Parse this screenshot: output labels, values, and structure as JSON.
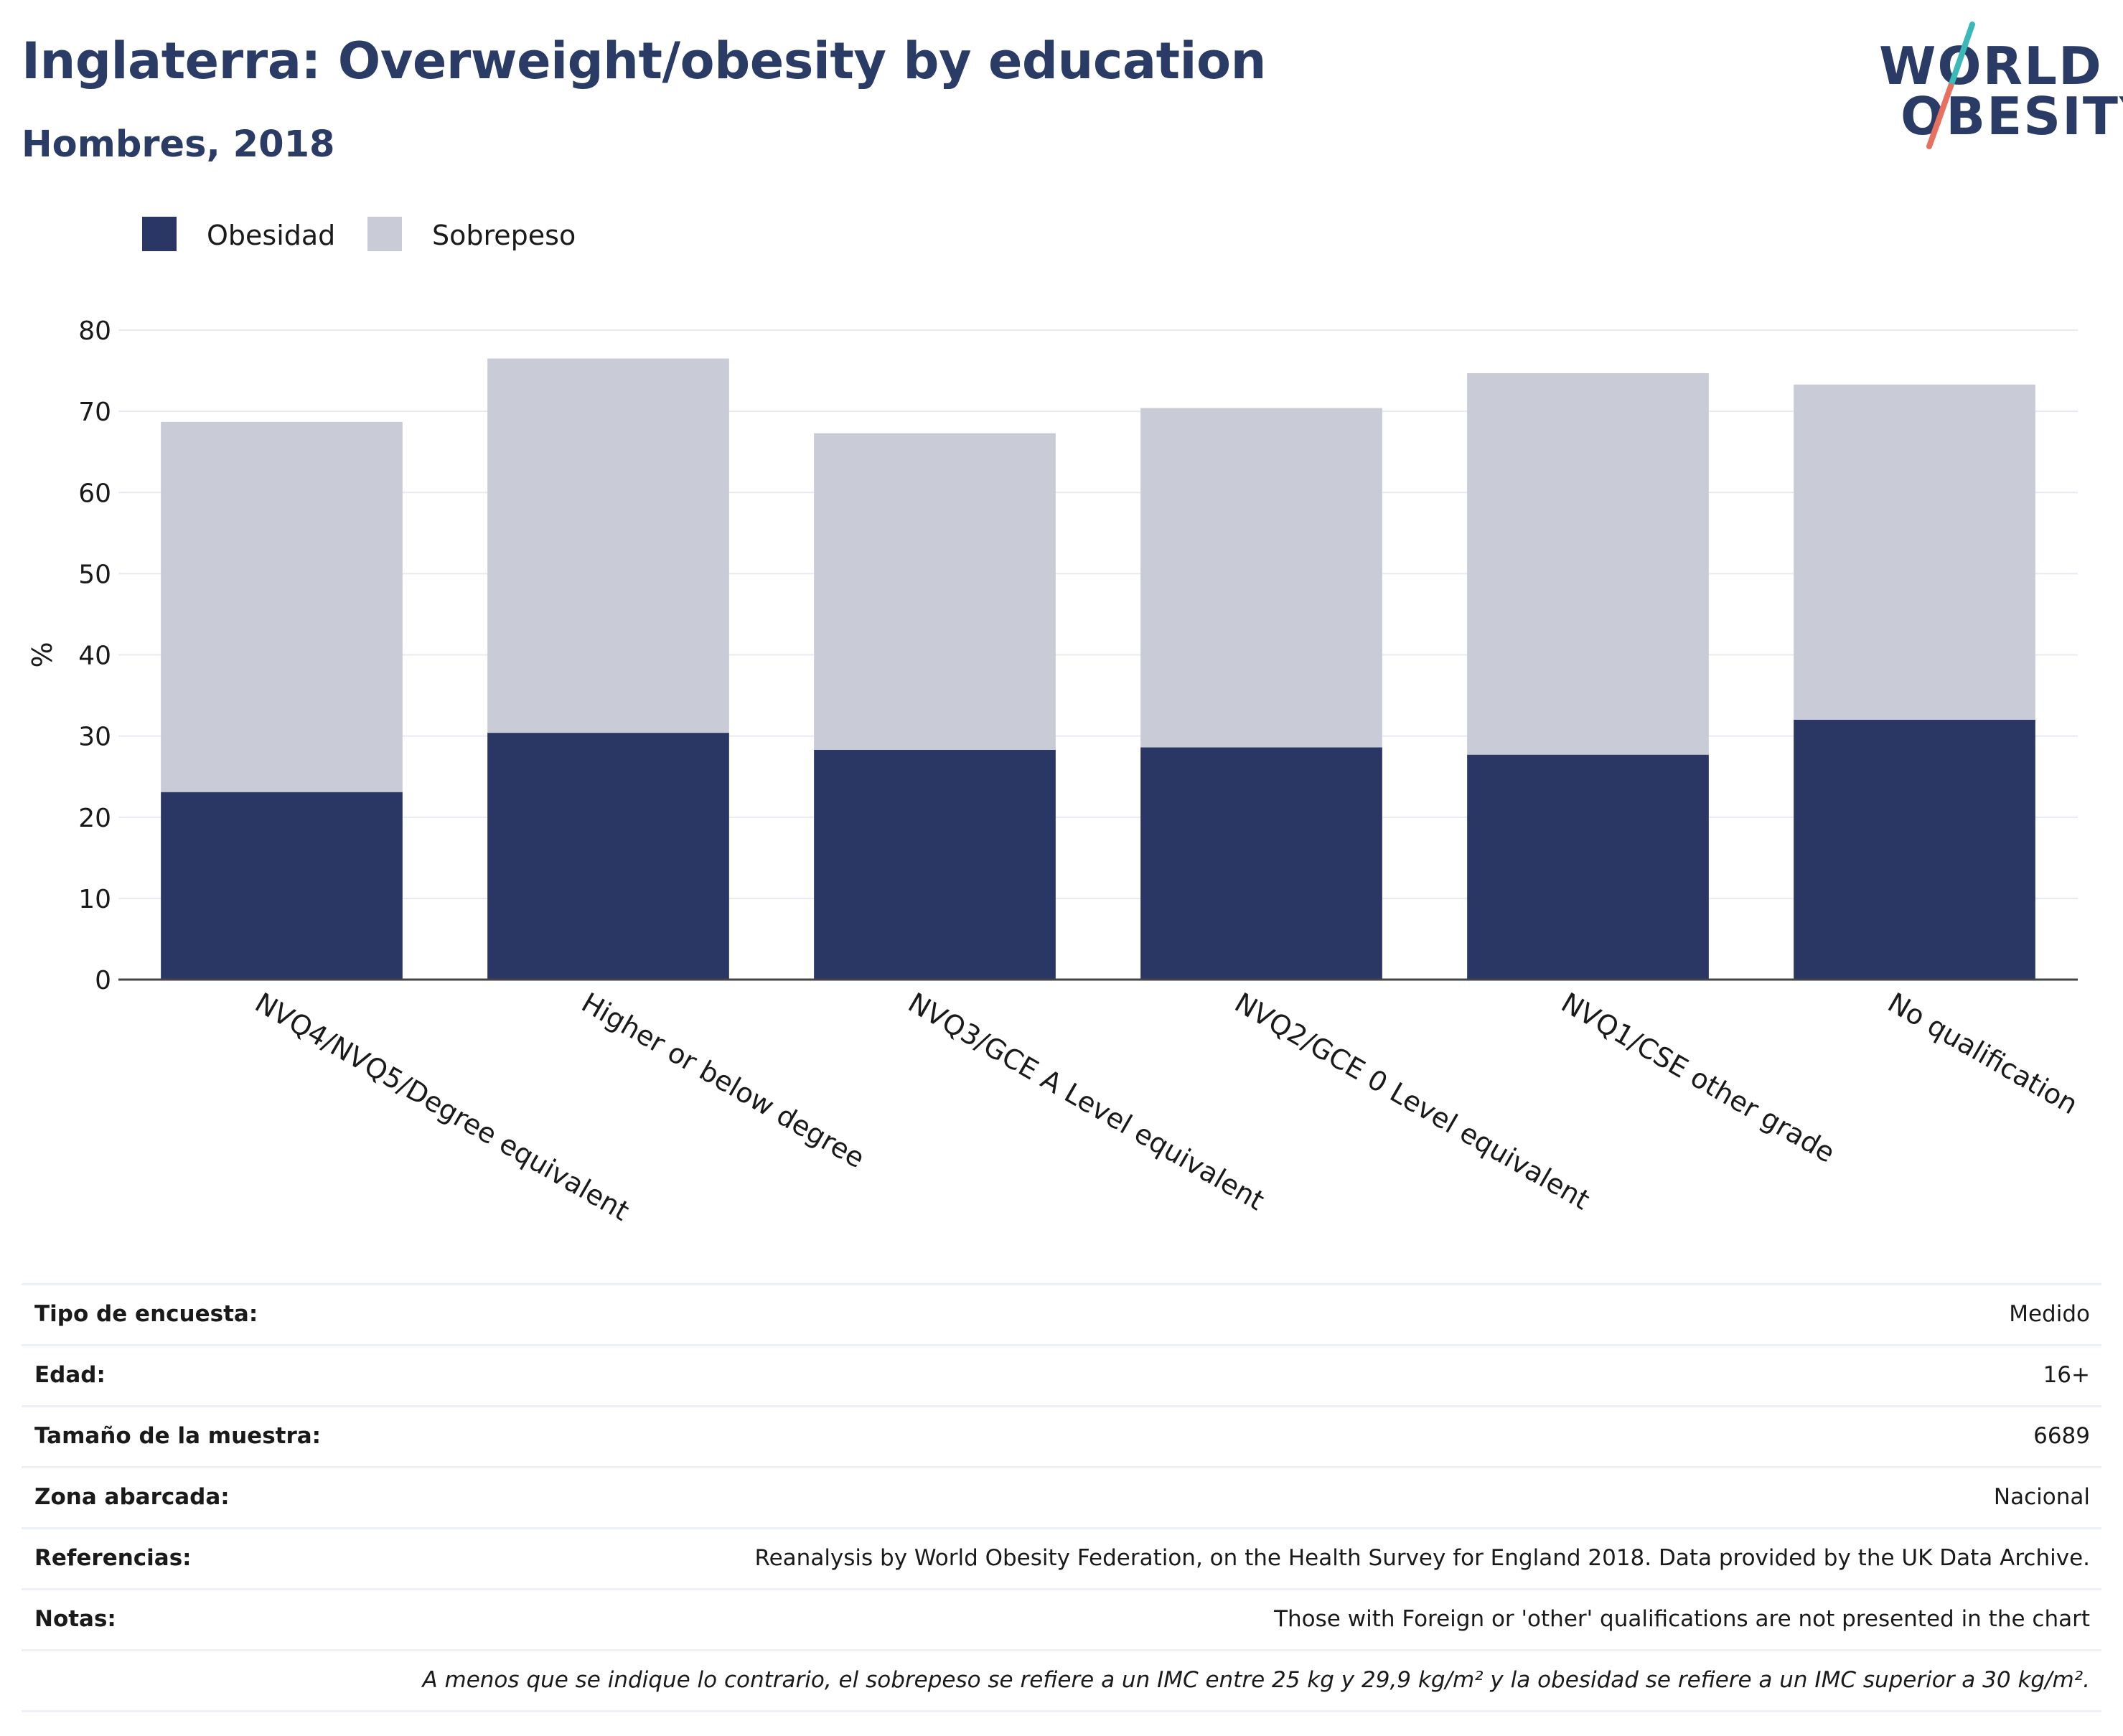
{
  "header": {
    "title": "Inglaterra: Overweight/obesity by education",
    "subtitle": "Hombres, 2018"
  },
  "logo": {
    "line1": "WORLD",
    "line2": "OBESITY",
    "accent_teal": "#3bb8b8",
    "accent_coral": "#e8705f"
  },
  "colors": {
    "obesity": "#2a3664",
    "overweight": "#c9cbd7",
    "grid": "#e8eaf2",
    "axis": "#444444"
  },
  "chart_data": {
    "type": "bar",
    "stacked": true,
    "categories": [
      "NVQ4/NVQ5/Degree equivalent",
      "Higher or below degree",
      "NVQ3/GCE A Level equivalent",
      "NVQ2/GCE 0 Level equivalent",
      "NVQ1/CSE other grade",
      "No qualification"
    ],
    "series": [
      {
        "name": "Obesidad",
        "values": [
          23.1,
          30.4,
          28.3,
          28.6,
          27.7,
          32.0
        ]
      },
      {
        "name": "Sobrepeso",
        "values": [
          45.6,
          46.1,
          39.0,
          41.8,
          47.0,
          41.3
        ]
      }
    ],
    "ylabel": "%",
    "xlabel": "",
    "ylim": [
      0,
      80
    ],
    "yticks": [
      "0",
      "10",
      "20",
      "30",
      "40",
      "50",
      "60",
      "70",
      "80"
    ],
    "grid": true,
    "legend_position": "top-left"
  },
  "info": {
    "rows": [
      {
        "label": "Tipo de encuesta:",
        "value": "Medido"
      },
      {
        "label": "Edad:",
        "value": "16+"
      },
      {
        "label": "Tamaño de la muestra:",
        "value": "6689"
      },
      {
        "label": "Zona abarcada:",
        "value": "Nacional"
      },
      {
        "label": "Referencias:",
        "value": "Reanalysis by World Obesity Federation, on the Health Survey for England 2018. Data provided by the UK Data Archive."
      },
      {
        "label": "Notas:",
        "value": "Those with Foreign or 'other' qualifications are not presented in the chart"
      }
    ],
    "footnote": "A menos que se indique lo contrario, el sobrepeso se refiere a un IMC entre 25 kg y 29,9 kg/m² y la obesidad se refiere a un IMC superior a 30 kg/m²."
  }
}
